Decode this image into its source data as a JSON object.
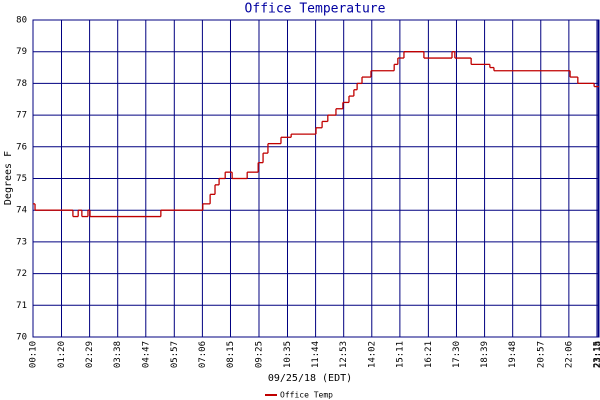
{
  "chart_data": {
    "type": "step",
    "title": "Office Temperature",
    "x_label": "09/25/18 (EDT)",
    "y_label": "Degrees F",
    "x": [
      10,
      15,
      108,
      121,
      130,
      145,
      150,
      324,
      427,
      445,
      457,
      467,
      482,
      499,
      536,
      563,
      575,
      587,
      619,
      644,
      705,
      720,
      734,
      754,
      771,
      786,
      798,
      806,
      818,
      840,
      897,
      906,
      921,
      970,
      1039,
      1046,
      1086,
      1132,
      1142,
      1329,
      1348,
      1388,
      1400
    ],
    "series": [
      {
        "name": "Office Temp",
        "color": "#c00000",
        "values": [
          74.2,
          74.0,
          73.8,
          74.0,
          73.8,
          74.0,
          73.8,
          74.0,
          74.2,
          74.5,
          74.8,
          75.0,
          75.2,
          75.0,
          75.2,
          75.5,
          75.8,
          76.1,
          76.3,
          76.4,
          76.6,
          76.8,
          77.0,
          77.2,
          77.4,
          77.6,
          77.8,
          78.0,
          78.2,
          78.4,
          78.6,
          78.8,
          79.0,
          78.8,
          79.0,
          78.8,
          78.6,
          78.5,
          78.4,
          78.2,
          78.0,
          77.9,
          77.9
        ]
      }
    ],
    "xlim": [
      10,
      1400
    ],
    "ylim": [
      70,
      80
    ],
    "yticks": [
      70,
      71,
      72,
      73,
      74,
      75,
      76,
      77,
      78,
      79,
      80
    ],
    "xticks": [
      {
        "value": 10,
        "label": "00:10"
      },
      {
        "value": 80,
        "label": "01:20"
      },
      {
        "value": 149,
        "label": "02:29"
      },
      {
        "value": 218,
        "label": "03:38"
      },
      {
        "value": 287,
        "label": "04:47"
      },
      {
        "value": 357,
        "label": "05:57"
      },
      {
        "value": 426,
        "label": "07:06"
      },
      {
        "value": 495,
        "label": "08:15"
      },
      {
        "value": 565,
        "label": "09:25"
      },
      {
        "value": 635,
        "label": "10:35"
      },
      {
        "value": 704,
        "label": "11:44"
      },
      {
        "value": 773,
        "label": "12:53"
      },
      {
        "value": 842,
        "label": "14:02"
      },
      {
        "value": 911,
        "label": "15:11"
      },
      {
        "value": 981,
        "label": "16:21"
      },
      {
        "value": 1050,
        "label": "17:30"
      },
      {
        "value": 1119,
        "label": "18:39"
      },
      {
        "value": 1188,
        "label": "19:48"
      },
      {
        "value": 1257,
        "label": "20:57"
      },
      {
        "value": 1326,
        "label": "22:06"
      },
      {
        "value": 1395,
        "label": "23:15"
      },
      {
        "value": 1398,
        "label": "23:18"
      }
    ],
    "grid": true,
    "grid_color": "#000080",
    "legend": "bottom"
  }
}
